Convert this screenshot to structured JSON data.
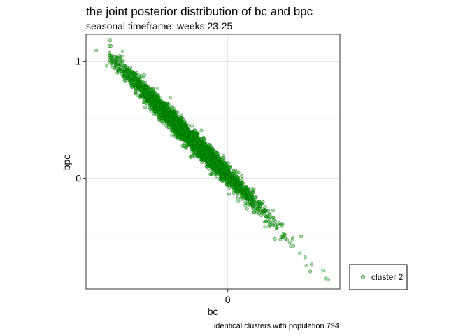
{
  "chart_data": {
    "type": "scatter",
    "title": "the joint posterior distribution of bc and bpc",
    "subtitle": "seasonal timeframe: weeks 23-25",
    "xlabel": "bc",
    "ylabel": "bpc",
    "caption": "identical clusters with population 794",
    "xlim": [
      -1.1,
      0.87
    ],
    "ylim": [
      -0.95,
      1.23
    ],
    "x_ticks": [
      0
    ],
    "x_tick_labels": [
      "0"
    ],
    "y_ticks": [
      0,
      1
    ],
    "y_tick_labels": [
      "0",
      "1"
    ],
    "x_minor_gridlines": [],
    "y_minor_gridlines": [
      -0.5,
      0.5
    ],
    "grid": true,
    "legend_placement": "right",
    "series": [
      {
        "name": "cluster 2",
        "color": "#00aa00",
        "edge_color": "#006400",
        "fill_opacity": 0.35,
        "point_count": 3000,
        "relationship": "y ≈ -1.11·x + 0.02 with small residual scatter",
        "points": [
          [
            -1.02,
            1.09
          ],
          [
            -0.92,
            1.13
          ],
          [
            -0.94,
            0.96
          ],
          [
            -0.9,
            0.98
          ],
          [
            -0.88,
            0.94
          ],
          [
            -0.84,
            0.93
          ],
          [
            -0.8,
            0.89
          ],
          [
            -0.76,
            0.86
          ],
          [
            -0.7,
            0.77
          ],
          [
            -0.64,
            0.71
          ],
          [
            -0.56,
            0.62
          ],
          [
            -0.48,
            0.55
          ],
          [
            -0.4,
            0.45
          ],
          [
            -0.32,
            0.37
          ],
          [
            -0.24,
            0.28
          ],
          [
            -0.16,
            0.2
          ],
          [
            -0.08,
            0.11
          ],
          [
            0.0,
            0.01
          ],
          [
            0.08,
            -0.07
          ],
          [
            0.16,
            -0.16
          ],
          [
            0.24,
            -0.26
          ],
          [
            0.3,
            -0.33
          ],
          [
            0.38,
            -0.43
          ],
          [
            0.45,
            -0.52
          ],
          [
            0.48,
            -0.55
          ],
          [
            0.51,
            -0.58
          ],
          [
            0.57,
            -0.5
          ],
          [
            0.6,
            -0.68
          ],
          [
            0.61,
            -0.75
          ],
          [
            0.64,
            -0.8
          ],
          [
            0.65,
            -0.74
          ],
          [
            0.74,
            -0.79
          ],
          [
            0.76,
            -0.86
          ],
          [
            0.78,
            -0.87
          ]
        ]
      }
    ]
  }
}
